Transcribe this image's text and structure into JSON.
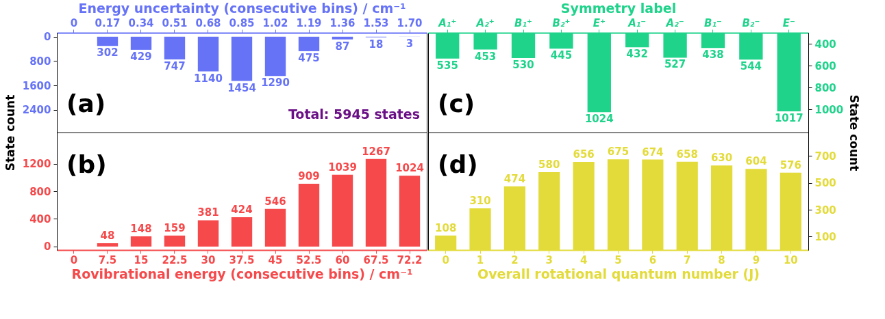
{
  "chart_data": [
    {
      "type": "bar",
      "xlabel": "Energy uncertainty (consecutive bins) / cm⁻¹",
      "categories": [
        "0",
        "0.17",
        "0.34",
        "0.51",
        "0.68",
        "0.85",
        "1.02",
        "1.19",
        "1.36",
        "1.53",
        "1.70"
      ],
      "series": [
        {
          "color": "#6673f7",
          "values": [
            null,
            302,
            429,
            747,
            1140,
            1454,
            1290,
            475,
            87,
            18,
            3
          ]
        }
      ],
      "ylim": [
        3150,
        -130
      ],
      "yticks": [
        0,
        800,
        1600,
        2400
      ],
      "data_labels": true,
      "grid": false,
      "annotations": [
        "(a)",
        "Total: 5945 states"
      ]
    },
    {
      "type": "bar",
      "xlabel": "Symmetry label",
      "categories": [
        "A₁⁺",
        "A₂⁺",
        "B₁⁺",
        "B₂⁺",
        "E⁺",
        "A₁⁻",
        "A₂⁻",
        "B₁⁻",
        "B₂⁻",
        "E⁻"
      ],
      "series": [
        {
          "color": "#1fd38b",
          "axis": "y2",
          "values": [
            535,
            453,
            530,
            445,
            1024,
            432,
            527,
            438,
            544,
            1017
          ]
        }
      ],
      "y2lim": [
        1210,
        300
      ],
      "y2ticks": [
        400,
        600,
        800,
        1000
      ],
      "data_labels": true,
      "grid": false,
      "annotations": [
        "(c)"
      ]
    },
    {
      "type": "bar",
      "xlabel": "Rovibrational energy (consecutive bins) / cm⁻¹",
      "ylabel": "State count",
      "categories": [
        "0",
        "7.5",
        "15",
        "22.5",
        "30",
        "37.5",
        "45",
        "52.5",
        "60",
        "67.5",
        "72.2"
      ],
      "series": [
        {
          "color": "#f5494b",
          "values": [
            null,
            48,
            148,
            159,
            381,
            424,
            546,
            909,
            1039,
            1267,
            1024
          ]
        }
      ],
      "ylim": [
        -50,
        1650
      ],
      "yticks": [
        0,
        400,
        800,
        1200
      ],
      "data_labels": true,
      "grid": false,
      "annotations": [
        "(b)"
      ]
    },
    {
      "type": "bar",
      "xlabel": "Overall rotational quantum number (J)",
      "y2label": "State count",
      "categories": [
        "0",
        "1",
        "2",
        "3",
        "4",
        "5",
        "6",
        "7",
        "8",
        "9",
        "10"
      ],
      "series": [
        {
          "color": "#e3db3a",
          "axis": "y2",
          "values": [
            108,
            310,
            474,
            580,
            656,
            675,
            674,
            658,
            630,
            604,
            576
          ]
        }
      ],
      "y2lim": [
        0,
        875
      ],
      "y2ticks": [
        100,
        300,
        500,
        700
      ],
      "data_labels": true,
      "grid": false,
      "annotations": [
        "(d)"
      ]
    }
  ]
}
